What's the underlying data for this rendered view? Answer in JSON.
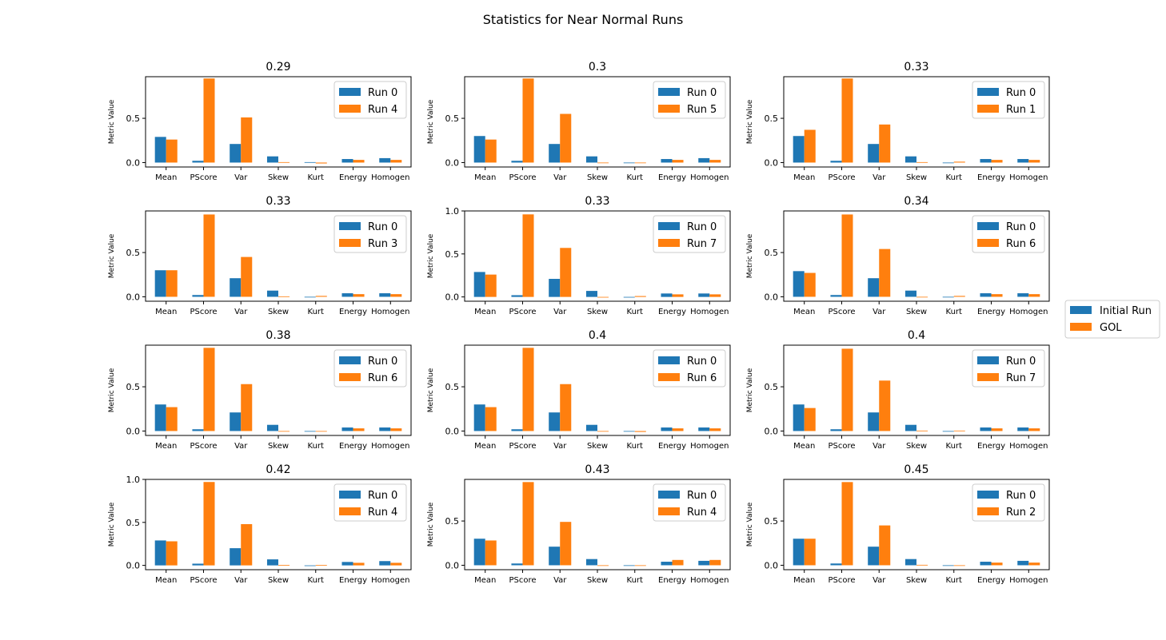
{
  "figure": {
    "suptitle": "Statistics for Near Normal Runs",
    "ylabel": "Metric Value",
    "categories": [
      "Mean",
      "PScore",
      "Var",
      "Skew",
      "Kurt",
      "Energy",
      "Homogen"
    ],
    "figure_legend": [
      "Initial Run",
      "GOL"
    ],
    "colors": {
      "initial": "#1f77b4",
      "gol": "#ff7f0e"
    }
  },
  "chart_data": [
    {
      "type": "bar",
      "title": "0.29",
      "ylim": [
        -0.05,
        0.97
      ],
      "yticks": [
        "0.0",
        "0.5"
      ],
      "series": [
        {
          "name": "Run 0",
          "values": [
            0.29,
            0.02,
            0.21,
            0.07,
            0.005,
            0.04,
            0.05
          ]
        },
        {
          "name": "Run 4",
          "values": [
            0.26,
            0.95,
            0.51,
            0.005,
            -0.01,
            0.03,
            0.03
          ]
        }
      ]
    },
    {
      "type": "bar",
      "title": "0.3",
      "ylim": [
        -0.05,
        0.97
      ],
      "yticks": [
        "0.0",
        "0.5"
      ],
      "series": [
        {
          "name": "Run 0",
          "values": [
            0.3,
            0.02,
            0.21,
            0.07,
            -0.005,
            0.04,
            0.05
          ]
        },
        {
          "name": "Run 5",
          "values": [
            0.26,
            0.95,
            0.55,
            -0.005,
            0.0,
            0.03,
            0.03
          ]
        }
      ]
    },
    {
      "type": "bar",
      "title": "0.33",
      "ylim": [
        -0.05,
        0.97
      ],
      "yticks": [
        "0.0",
        "0.5"
      ],
      "series": [
        {
          "name": "Run 0",
          "values": [
            0.3,
            0.02,
            0.21,
            0.07,
            0.0,
            0.04,
            0.04
          ]
        },
        {
          "name": "Run 1",
          "values": [
            0.37,
            0.95,
            0.43,
            0.005,
            0.01,
            0.03,
            0.03
          ]
        }
      ]
    },
    {
      "type": "bar",
      "title": "0.33",
      "ylim": [
        -0.05,
        0.97
      ],
      "yticks": [
        "0.0",
        "0.5"
      ],
      "series": [
        {
          "name": "Run 0",
          "values": [
            0.3,
            0.02,
            0.21,
            0.07,
            0.0,
            0.04,
            0.04
          ]
        },
        {
          "name": "Run 3",
          "values": [
            0.3,
            0.93,
            0.45,
            0.005,
            0.01,
            0.03,
            0.03
          ]
        }
      ]
    },
    {
      "type": "bar",
      "title": "0.33",
      "ylim": [
        -0.05,
        1.0
      ],
      "yticks": [
        "0.0",
        "0.5",
        "1.0"
      ],
      "series": [
        {
          "name": "Run 0",
          "values": [
            0.29,
            0.02,
            0.21,
            0.07,
            0.0,
            0.04,
            0.04
          ]
        },
        {
          "name": "Run 7",
          "values": [
            0.26,
            0.96,
            0.57,
            0.0,
            0.01,
            0.03,
            0.03
          ]
        }
      ]
    },
    {
      "type": "bar",
      "title": "0.34",
      "ylim": [
        -0.05,
        0.97
      ],
      "yticks": [
        "0.0",
        "0.5"
      ],
      "series": [
        {
          "name": "Run 0",
          "values": [
            0.29,
            0.02,
            0.21,
            0.07,
            0.0,
            0.04,
            0.04
          ]
        },
        {
          "name": "Run 6",
          "values": [
            0.27,
            0.93,
            0.54,
            0.0,
            0.01,
            0.03,
            0.03
          ]
        }
      ]
    },
    {
      "type": "bar",
      "title": "0.38",
      "ylim": [
        -0.05,
        0.97
      ],
      "yticks": [
        "0.0",
        "0.5"
      ],
      "series": [
        {
          "name": "Run 0",
          "values": [
            0.3,
            0.02,
            0.21,
            0.07,
            0.0,
            0.04,
            0.04
          ]
        },
        {
          "name": "Run 6",
          "values": [
            0.27,
            0.94,
            0.53,
            -0.005,
            0.0,
            0.03,
            0.03
          ]
        }
      ]
    },
    {
      "type": "bar",
      "title": "0.4",
      "ylim": [
        -0.05,
        0.97
      ],
      "yticks": [
        "0.0",
        "0.5"
      ],
      "series": [
        {
          "name": "Run 0",
          "values": [
            0.3,
            0.02,
            0.21,
            0.07,
            -0.005,
            0.04,
            0.04
          ]
        },
        {
          "name": "Run 6",
          "values": [
            0.27,
            0.94,
            0.53,
            -0.005,
            -0.01,
            0.03,
            0.03
          ]
        }
      ]
    },
    {
      "type": "bar",
      "title": "0.4",
      "ylim": [
        -0.05,
        0.97
      ],
      "yticks": [
        "0.0",
        "0.5"
      ],
      "series": [
        {
          "name": "Run 0",
          "values": [
            0.3,
            0.02,
            0.21,
            0.07,
            -0.005,
            0.04,
            0.04
          ]
        },
        {
          "name": "Run 7",
          "values": [
            0.26,
            0.93,
            0.57,
            0.005,
            0.005,
            0.03,
            0.03
          ]
        }
      ]
    },
    {
      "type": "bar",
      "title": "0.42",
      "ylim": [
        -0.05,
        1.0
      ],
      "yticks": [
        "0.0",
        "0.5",
        "1.0"
      ],
      "series": [
        {
          "name": "Run 0",
          "values": [
            0.29,
            0.02,
            0.2,
            0.07,
            -0.005,
            0.04,
            0.05
          ]
        },
        {
          "name": "Run 4",
          "values": [
            0.28,
            0.97,
            0.48,
            0.005,
            0.005,
            0.03,
            0.03
          ]
        }
      ]
    },
    {
      "type": "bar",
      "title": "0.43",
      "ylim": [
        -0.05,
        0.97
      ],
      "yticks": [
        "0.0",
        "0.5"
      ],
      "series": [
        {
          "name": "Run 0",
          "values": [
            0.3,
            0.02,
            0.21,
            0.07,
            -0.005,
            0.04,
            0.05
          ]
        },
        {
          "name": "Run 4",
          "values": [
            0.28,
            0.94,
            0.49,
            -0.005,
            -0.005,
            0.06,
            0.06
          ]
        }
      ]
    },
    {
      "type": "bar",
      "title": "0.45",
      "ylim": [
        -0.05,
        0.97
      ],
      "yticks": [
        "0.0",
        "0.5"
      ],
      "series": [
        {
          "name": "Run 0",
          "values": [
            0.3,
            0.02,
            0.21,
            0.07,
            -0.005,
            0.04,
            0.05
          ]
        },
        {
          "name": "Run 2",
          "values": [
            0.3,
            0.94,
            0.45,
            0.005,
            0.0,
            0.03,
            0.03
          ]
        }
      ]
    }
  ]
}
